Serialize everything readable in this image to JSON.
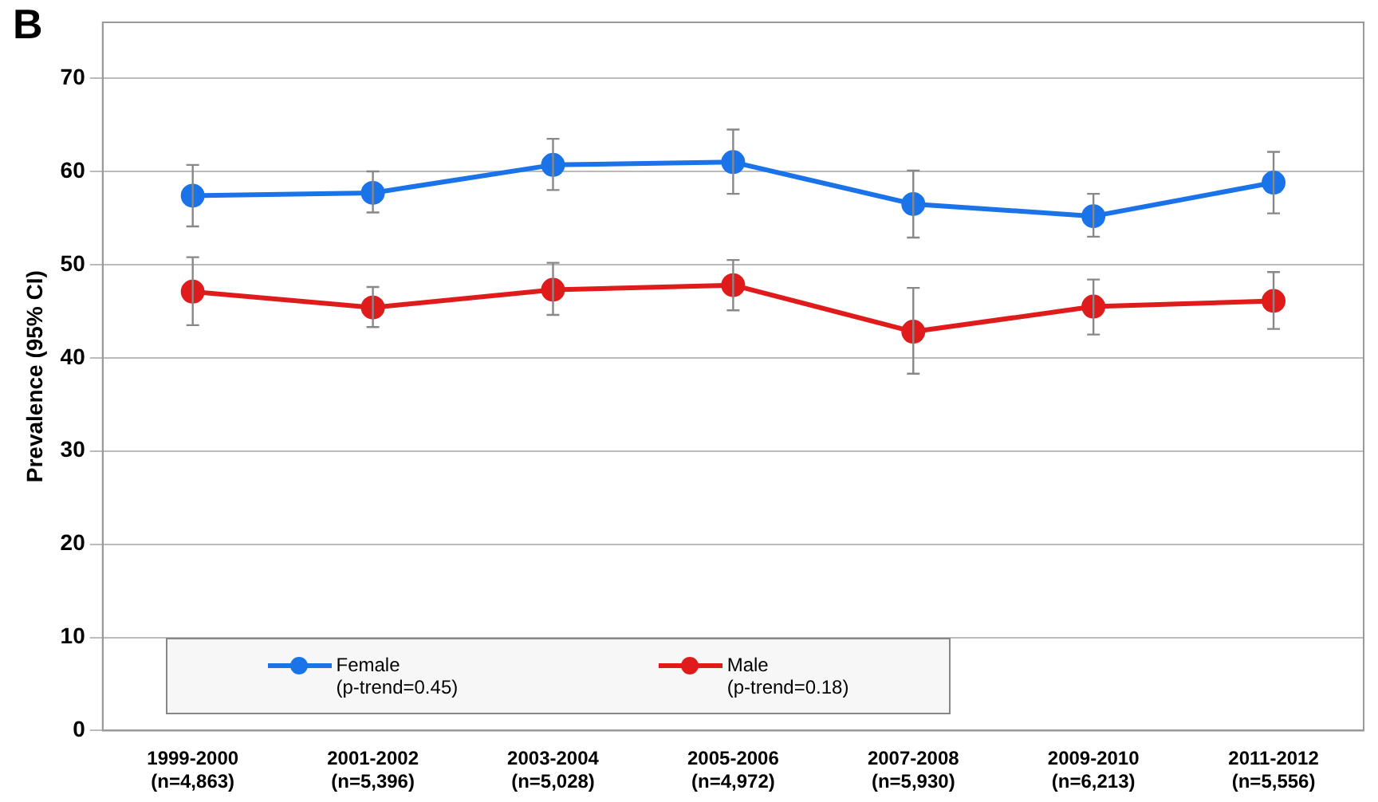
{
  "chart_data": {
    "type": "line",
    "title": "B",
    "ylabel": "Prevalence (95% CI)",
    "categories": [
      "1999-2000\n(n=4,863)",
      "2001-2002\n(n=5,396)",
      "2003-2004\n(n=5,028)",
      "2005-2006\n(n=4,972)",
      "2007-2008\n(n=5,930)",
      "2009-2010\n(n=6,213)",
      "2011-2012\n(n=5,556)"
    ],
    "series": [
      {
        "name": "Female\n(p-trend=0.45)",
        "color": "#1a73e8",
        "values": [
          57.4,
          57.7,
          60.7,
          61.0,
          56.5,
          55.2,
          58.8
        ],
        "errors": [
          [
            54.1,
            60.7
          ],
          [
            55.6,
            60.0
          ],
          [
            58.0,
            63.5
          ],
          [
            57.6,
            64.5
          ],
          [
            52.9,
            60.1
          ],
          [
            53.0,
            57.6
          ],
          [
            55.5,
            62.1
          ]
        ]
      },
      {
        "name": "Male\n(p-trend=0.18)",
        "color": "#e01b1b",
        "values": [
          47.1,
          45.4,
          47.3,
          47.8,
          42.8,
          45.5,
          46.1
        ],
        "errors": [
          [
            43.5,
            50.8
          ],
          [
            43.3,
            47.6
          ],
          [
            44.6,
            50.2
          ],
          [
            45.1,
            50.5
          ],
          [
            38.3,
            47.5
          ],
          [
            42.5,
            48.4
          ],
          [
            43.1,
            49.2
          ]
        ]
      }
    ],
    "ylim": [
      0,
      76
    ],
    "yticks": [
      0,
      10,
      20,
      30,
      40,
      50,
      60,
      70
    ],
    "grid": "y",
    "legend": "bottom",
    "marker": "circle",
    "line_style": "solid"
  }
}
